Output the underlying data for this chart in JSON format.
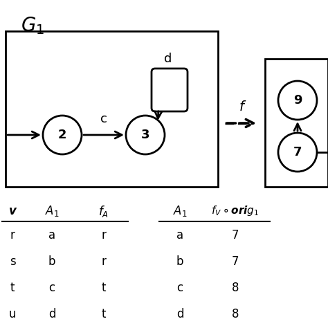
{
  "title_g1": "G",
  "title_g1_sub": "1",
  "node2_label": "2",
  "node3_label": "3",
  "node9_label": "9",
  "node7_label": "7",
  "edge_c_label": "c",
  "edge_d_label": "d",
  "f_label": "f",
  "table1_headers": [
    "v",
    "A_1",
    "f_A"
  ],
  "table1_rows": [
    [
      "r",
      "a",
      "r"
    ],
    [
      "s",
      "b",
      "r"
    ],
    [
      "t",
      "c",
      "t"
    ],
    [
      "u",
      "d",
      "t"
    ]
  ],
  "table2_headers": [
    "A_1",
    "f_V ∘ orig_1"
  ],
  "table2_rows": [
    [
      "a",
      "7"
    ],
    [
      "b",
      "7"
    ],
    [
      "c",
      "8"
    ],
    [
      "d",
      "8"
    ]
  ],
  "bg_color": "#ffffff",
  "node_edge_color": "#000000",
  "node_fill_color": "#ffffff"
}
